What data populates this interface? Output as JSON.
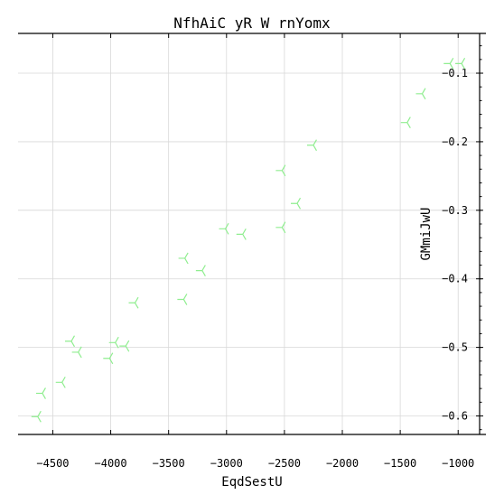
{
  "chart_data": {
    "type": "scatter",
    "title": "NfhAiC yR W rnYomx",
    "xlabel": "EqdSestU",
    "ylabel": "GMmiJwU",
    "xlim": [
      -4800,
      -760
    ],
    "ylim": [
      -0.627,
      -0.042
    ],
    "xticks": [
      -4500,
      -4000,
      -3500,
      -3000,
      -2500,
      -2000,
      -1500,
      -1000
    ],
    "xtick_labels": [
      "−4500",
      "−4000",
      "−3500",
      "−3000",
      "−2500",
      "−2000",
      "−1500",
      "−1000"
    ],
    "yticks": [
      -0.1,
      -0.2,
      -0.3,
      -0.4,
      -0.5,
      -0.6
    ],
    "ytick_labels": [
      "−0.1",
      "−0.2",
      "−0.3",
      "−0.4",
      "−0.5",
      "−0.6"
    ],
    "y_axis_side": "right",
    "grid": true,
    "marker": "tri_left",
    "color": "#90ee90",
    "series": [
      {
        "x": [
          -4630,
          -4590,
          -4420,
          -4340,
          -4280,
          -4010,
          -3960,
          -3870,
          -3790,
          -3370,
          -3360,
          -3210,
          -3010,
          -2860,
          -2520,
          -2520,
          -2390,
          -2250,
          -1440,
          -1310,
          -1070,
          -970
        ],
        "y": [
          -0.601,
          -0.567,
          -0.551,
          -0.491,
          -0.507,
          -0.516,
          -0.493,
          -0.498,
          -0.435,
          -0.43,
          -0.37,
          -0.388,
          -0.327,
          -0.335,
          -0.325,
          -0.242,
          -0.29,
          -0.205,
          -0.172,
          -0.13,
          -0.086,
          -0.086
        ]
      }
    ]
  }
}
